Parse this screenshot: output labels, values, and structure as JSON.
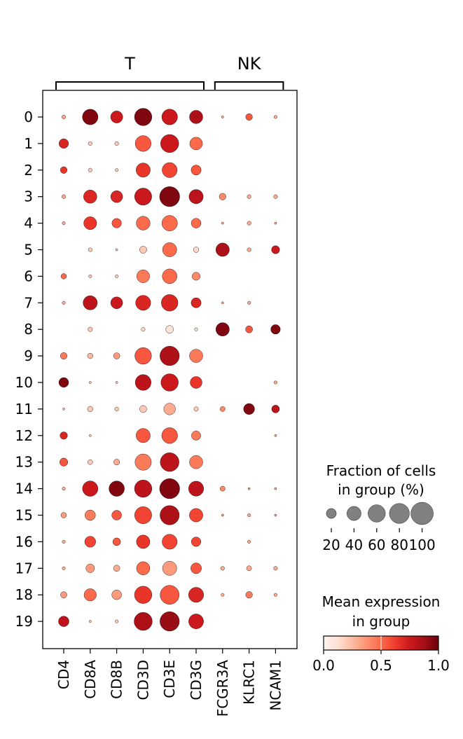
{
  "chart_data": {
    "type": "scatter",
    "subtype": "dotplot",
    "genes": [
      "CD4",
      "CD8A",
      "CD8B",
      "CD3D",
      "CD3E",
      "CD3G",
      "FCGR3A",
      "KLRC1",
      "NCAM1"
    ],
    "groups": [
      "0",
      "1",
      "2",
      "3",
      "4",
      "5",
      "6",
      "7",
      "8",
      "9",
      "10",
      "11",
      "12",
      "13",
      "14",
      "15",
      "16",
      "17",
      "18",
      "19"
    ],
    "gene_groups": [
      {
        "label": "T",
        "start": 0,
        "end": 5
      },
      {
        "label": "NK",
        "start": 6,
        "end": 8
      }
    ],
    "fraction": [
      [
        3,
        48,
        29,
        60,
        49,
        35,
        1,
        9,
        2
      ],
      [
        18,
        3,
        3,
        50,
        65,
        32,
        0,
        0,
        0
      ],
      [
        9,
        3,
        2,
        40,
        45,
        20,
        0,
        0,
        0
      ],
      [
        3,
        35,
        28,
        58,
        80,
        40,
        9,
        3,
        3
      ],
      [
        2,
        33,
        18,
        38,
        48,
        19,
        1,
        3,
        1
      ],
      [
        0,
        3,
        1,
        10,
        40,
        6,
        36,
        3,
        13
      ],
      [
        6,
        2,
        2,
        33,
        43,
        13,
        0,
        0,
        0
      ],
      [
        2,
        40,
        28,
        45,
        55,
        20,
        1,
        2,
        0
      ],
      [
        0,
        4,
        0,
        3,
        12,
        2,
        36,
        10,
        18
      ],
      [
        9,
        6,
        8,
        55,
        75,
        35,
        0,
        0,
        0
      ],
      [
        19,
        1,
        1,
        50,
        60,
        28,
        0,
        0,
        2
      ],
      [
        1,
        6,
        3,
        10,
        27,
        4,
        5,
        24,
        12
      ],
      [
        11,
        1,
        0,
        40,
        50,
        17,
        0,
        0,
        1
      ],
      [
        13,
        5,
        7,
        53,
        70,
        35,
        0,
        0,
        0
      ],
      [
        2,
        47,
        47,
        60,
        80,
        45,
        5,
        1,
        1
      ],
      [
        6,
        22,
        19,
        58,
        74,
        36,
        1,
        2,
        1
      ],
      [
        2,
        24,
        12,
        36,
        45,
        18,
        0,
        2,
        0
      ],
      [
        2,
        15,
        8,
        35,
        40,
        23,
        3,
        5,
        3
      ],
      [
        8,
        30,
        19,
        60,
        72,
        45,
        2,
        9,
        2
      ],
      [
        22,
        1,
        2,
        65,
        75,
        44,
        0,
        0,
        0
      ]
    ],
    "mean_expression": [
      [
        0.3,
        0.95,
        0.75,
        0.95,
        0.75,
        0.85,
        0.3,
        0.55,
        0.3
      ],
      [
        0.7,
        0.2,
        0.2,
        0.55,
        0.75,
        0.5,
        0.2,
        0.2,
        0.2
      ],
      [
        0.65,
        0.2,
        0.2,
        0.65,
        0.6,
        0.55,
        0.2,
        0.2,
        0.2
      ],
      [
        0.3,
        0.7,
        0.7,
        0.75,
        0.95,
        0.8,
        0.4,
        0.3,
        0.3
      ],
      [
        0.3,
        0.65,
        0.55,
        0.5,
        0.5,
        0.5,
        0.3,
        0.3,
        0.3
      ],
      [
        0.2,
        0.2,
        0.2,
        0.2,
        0.5,
        0.15,
        0.85,
        0.3,
        0.75
      ],
      [
        0.5,
        0.2,
        0.2,
        0.45,
        0.5,
        0.4,
        0.2,
        0.2,
        0.2
      ],
      [
        0.3,
        0.8,
        0.75,
        0.7,
        0.7,
        0.7,
        0.3,
        0.3,
        0.3
      ],
      [
        0.2,
        0.2,
        0.2,
        0.15,
        0.1,
        0.15,
        0.95,
        0.55,
        0.95
      ],
      [
        0.45,
        0.25,
        0.35,
        0.55,
        0.85,
        0.45,
        0.2,
        0.2,
        0.2
      ],
      [
        0.95,
        0.2,
        0.2,
        0.8,
        0.75,
        0.65,
        0.2,
        0.2,
        0.3
      ],
      [
        0.2,
        0.2,
        0.2,
        0.2,
        0.3,
        0.2,
        0.4,
        0.95,
        0.8
      ],
      [
        0.7,
        0.2,
        0.2,
        0.55,
        0.55,
        0.45,
        0.2,
        0.2,
        0.3
      ],
      [
        0.55,
        0.2,
        0.3,
        0.45,
        0.8,
        0.45,
        0.2,
        0.2,
        0.2
      ],
      [
        0.3,
        0.75,
        0.95,
        0.8,
        0.95,
        0.8,
        0.4,
        0.3,
        0.3
      ],
      [
        0.35,
        0.45,
        0.55,
        0.6,
        0.85,
        0.6,
        0.3,
        0.3,
        0.3
      ],
      [
        0.3,
        0.6,
        0.55,
        0.65,
        0.6,
        0.6,
        0.3,
        0.3,
        0.3
      ],
      [
        0.3,
        0.35,
        0.3,
        0.5,
        0.35,
        0.55,
        0.3,
        0.3,
        0.3
      ],
      [
        0.35,
        0.5,
        0.35,
        0.65,
        0.55,
        0.7,
        0.3,
        0.45,
        0.3
      ],
      [
        0.8,
        0.2,
        0.2,
        0.85,
        0.9,
        0.75,
        0.2,
        0.2,
        0.2
      ]
    ],
    "size_legend": {
      "title": "Fraction of cells\nin group (%)",
      "values": [
        20,
        40,
        60,
        80,
        100
      ],
      "labels": [
        "20",
        "40",
        "60",
        "80",
        "100"
      ]
    },
    "color_legend": {
      "title": "Mean expression\nin group",
      "range": [
        0.0,
        1.0
      ],
      "ticks": [
        0.0,
        0.5,
        1.0
      ],
      "labels": [
        "0.0",
        "0.5",
        "1.0"
      ],
      "colormap": "Reds"
    },
    "colors": {
      "low": "#fff5f0",
      "mid": "#fb6a4a",
      "high": "#67000d",
      "legend_dot": "#808080"
    }
  }
}
